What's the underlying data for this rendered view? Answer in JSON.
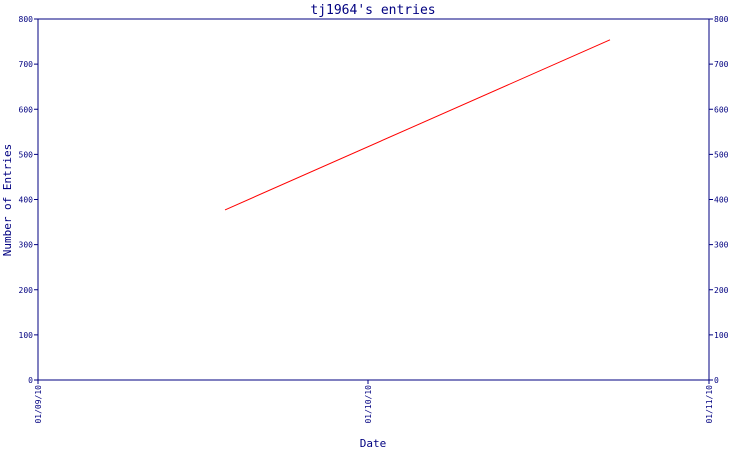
{
  "chart_data": {
    "type": "line",
    "title": "tj1964's entries",
    "xlabel": "Date",
    "ylabel": "Number of Entries",
    "x_ticks": [
      "01/09/10",
      "01/10/10",
      "01/11/10"
    ],
    "y_ticks": [
      "0",
      "100",
      "200",
      "300",
      "400",
      "500",
      "600",
      "700",
      "800"
    ],
    "ylim": [
      0,
      800
    ],
    "xlim": [
      "01/09/10",
      "01/11/10"
    ],
    "series": [
      {
        "color": "#ff0000",
        "points": [
          {
            "x": "2010-09-18",
            "y": 377
          },
          {
            "x": "2010-10-23",
            "y": 754
          }
        ]
      }
    ],
    "right_axis": true,
    "grid": false
  }
}
